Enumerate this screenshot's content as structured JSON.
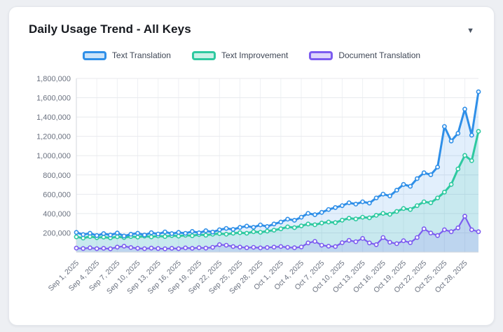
{
  "card": {
    "title": "Daily Usage Trend - All Keys",
    "collapse_icon": "▼"
  },
  "chart_data": {
    "type": "line",
    "title": "Daily Usage Trend - All Keys",
    "legend_position": "top",
    "grid": true,
    "ylim": [
      0,
      1800000
    ],
    "tick_step": 3,
    "y_ticks": [
      200000,
      400000,
      600000,
      800000,
      1000000,
      1200000,
      1400000,
      1600000,
      1800000
    ],
    "y_tick_labels": [
      "200,000",
      "400,000",
      "600,000",
      "800,000",
      "1,000,000",
      "1,200,000",
      "1,400,000",
      "1,600,000",
      "1,800,000"
    ],
    "x": [
      "Sep 1, 2025",
      "Sep 2, 2025",
      "Sep 3, 2025",
      "Sep 4, 2025",
      "Sep 5, 2025",
      "Sep 6, 2025",
      "Sep 7, 2025",
      "Sep 8, 2025",
      "Sep 9, 2025",
      "Sep 10, 2025",
      "Sep 11, 2025",
      "Sep 12, 2025",
      "Sep 13, 2025",
      "Sep 14, 2025",
      "Sep 15, 2025",
      "Sep 16, 2025",
      "Sep 17, 2025",
      "Sep 18, 2025",
      "Sep 19, 2025",
      "Sep 20, 2025",
      "Sep 21, 2025",
      "Sep 22, 2025",
      "Sep 23, 2025",
      "Sep 24, 2025",
      "Sep 25, 2025",
      "Sep 26, 2025",
      "Sep 27, 2025",
      "Sep 28, 2025",
      "Sep 29, 2025",
      "Sep 30, 2025",
      "Oct 1, 2025",
      "Oct 2, 2025",
      "Oct 3, 2025",
      "Oct 4, 2025",
      "Oct 5, 2025",
      "Oct 6, 2025",
      "Oct 7, 2025",
      "Oct 8, 2025",
      "Oct 9, 2025",
      "Oct 10, 2025",
      "Oct 11, 2025",
      "Oct 12, 2025",
      "Oct 13, 2025",
      "Oct 14, 2025",
      "Oct 15, 2025",
      "Oct 16, 2025",
      "Oct 17, 2025",
      "Oct 18, 2025",
      "Oct 19, 2025",
      "Oct 20, 2025",
      "Oct 21, 2025",
      "Oct 22, 2025",
      "Oct 23, 2025",
      "Oct 24, 2025",
      "Oct 25, 2025",
      "Oct 26, 2025",
      "Oct 27, 2025",
      "Oct 28, 2025",
      "Oct 29, 2025",
      "Oct 30, 2025"
    ],
    "series": [
      {
        "name": "Text Translation",
        "color": "#2f8fe8",
        "values": [
          205000,
          182000,
          196000,
          172000,
          192000,
          178000,
          198000,
          168000,
          186000,
          196000,
          178000,
          202000,
          188000,
          210000,
          192000,
          205000,
          195000,
          215000,
          200000,
          222000,
          208000,
          232000,
          246000,
          236000,
          256000,
          270000,
          258000,
          282000,
          266000,
          292000,
          312000,
          342000,
          330000,
          362000,
          402000,
          388000,
          412000,
          442000,
          462000,
          482000,
          512000,
          498000,
          522000,
          508000,
          562000,
          602000,
          582000,
          642000,
          702000,
          682000,
          762000,
          822000,
          802000,
          882000,
          1302000,
          1152000,
          1232000,
          1482000,
          1212000,
          1662000
        ]
      },
      {
        "name": "Text Improvement",
        "color": "#2ec9a0",
        "values": [
          158000,
          146000,
          162000,
          150000,
          156000,
          148000,
          160000,
          152000,
          162000,
          156000,
          166000,
          158000,
          168000,
          162000,
          172000,
          166000,
          176000,
          170000,
          182000,
          176000,
          186000,
          192000,
          186000,
          196000,
          202000,
          196000,
          212000,
          206000,
          218000,
          228000,
          242000,
          262000,
          254000,
          272000,
          292000,
          284000,
          302000,
          312000,
          306000,
          332000,
          352000,
          344000,
          362000,
          356000,
          382000,
          402000,
          392000,
          422000,
          452000,
          442000,
          482000,
          522000,
          512000,
          562000,
          622000,
          702000,
          862000,
          1002000,
          948000,
          1252000
        ]
      },
      {
        "name": "Document Translation",
        "color": "#7c5cf0",
        "values": [
          42000,
          38000,
          45000,
          36000,
          40000,
          35000,
          52000,
          62000,
          48000,
          40000,
          36000,
          42000,
          38000,
          35000,
          40000,
          36000,
          44000,
          40000,
          46000,
          42000,
          50000,
          78000,
          72000,
          58000,
          52000,
          46000,
          50000,
          44000,
          48000,
          52000,
          58000,
          50000,
          46000,
          54000,
          96000,
          112000,
          72000,
          62000,
          58000,
          98000,
          122000,
          108000,
          142000,
          96000,
          78000,
          152000,
          102000,
          88000,
          118000,
          98000,
          152000,
          242000,
          198000,
          172000,
          232000,
          212000,
          252000,
          372000,
          232000,
          212000
        ]
      }
    ]
  }
}
